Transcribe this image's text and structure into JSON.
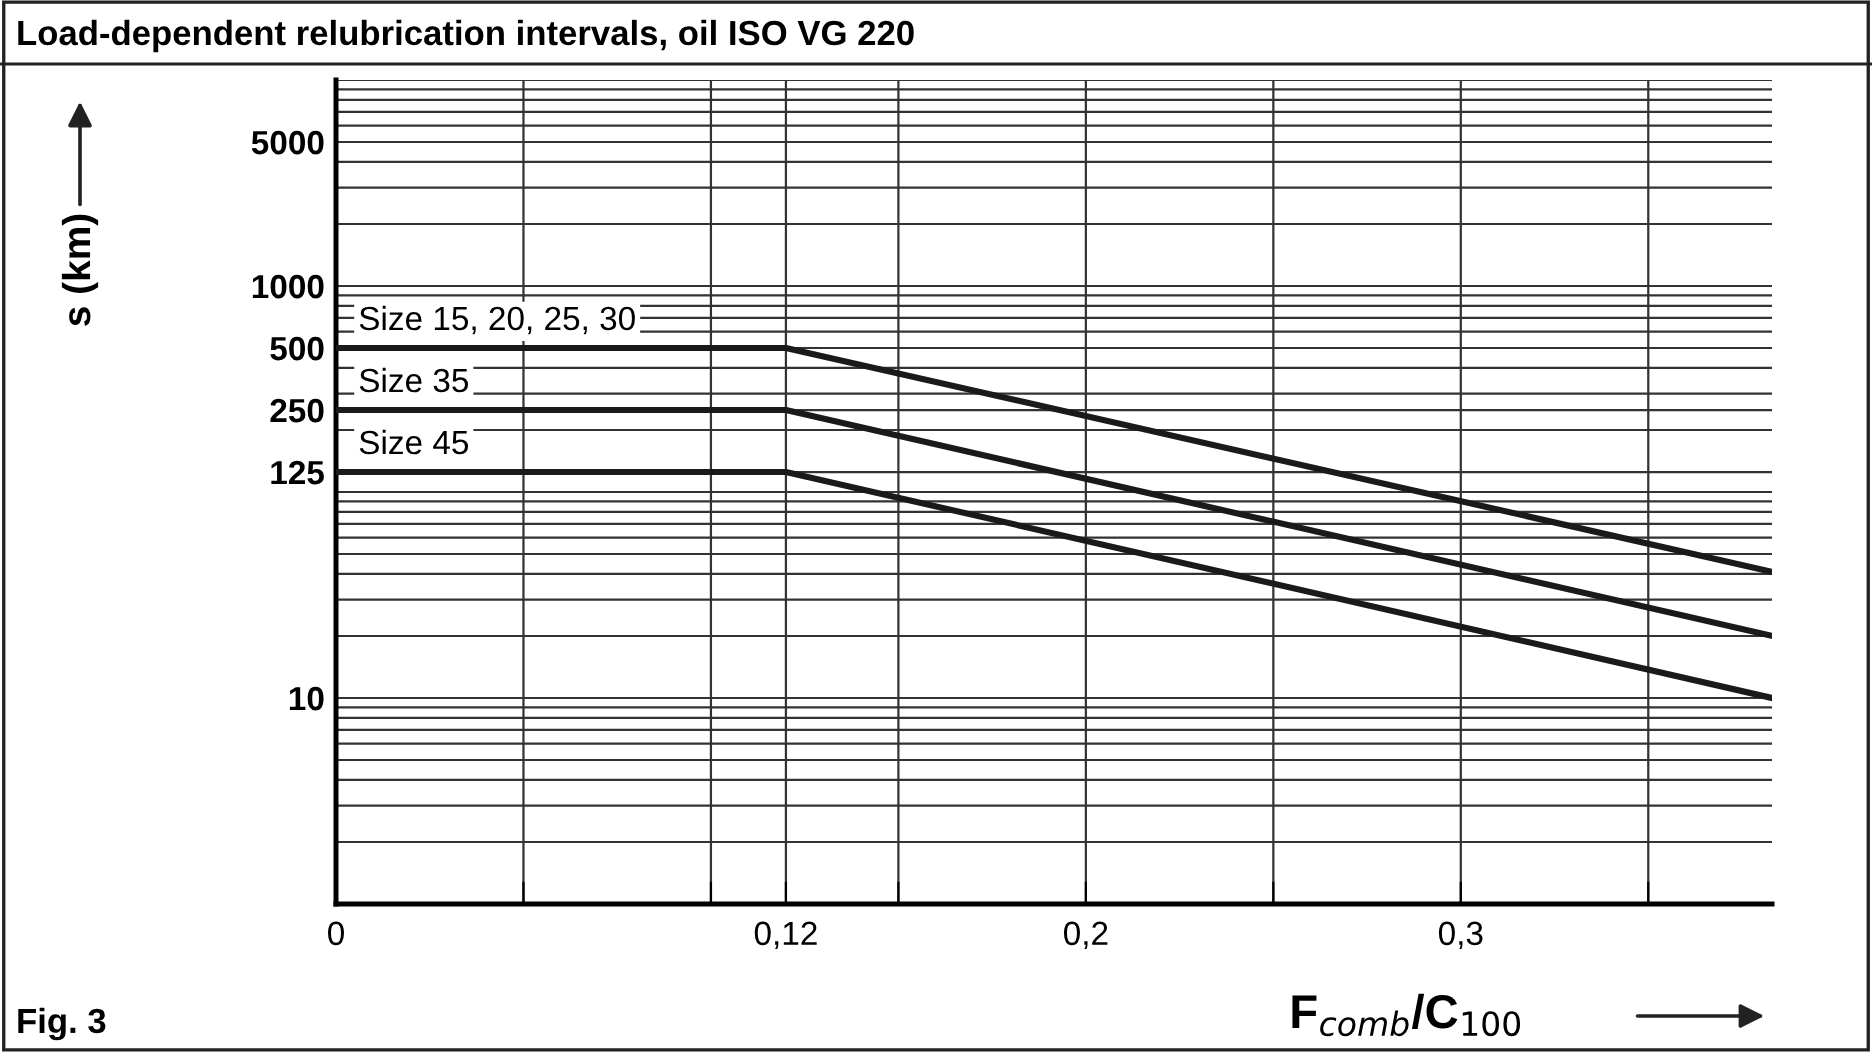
{
  "chart_data": {
    "type": "line",
    "title": "Load-dependent relubrication intervals, oil ISO VG 220",
    "ylabel": "s (km)",
    "xlabel": "F$_{comb}$/C$_{100}$",
    "annotations": [
      "Fig. 3"
    ],
    "x": [
      0,
      0.12,
      0.383
    ],
    "series": [
      {
        "name": "Size 15, 20, 25, 30",
        "color": "#1a1a1a",
        "values": [
          500,
          500,
          41
        ]
      },
      {
        "name": "Size 35",
        "color": "#1a1a1a",
        "values": [
          250,
          250,
          20
        ]
      },
      {
        "name": "Size 45",
        "color": "#1a1a1a",
        "values": [
          125,
          125,
          10
        ]
      }
    ],
    "log": "y",
    "xlim": [
      0,
      0.383
    ],
    "ylim": [
      1,
      10000
    ],
    "xticks": [
      0,
      {
        "value": 0.05,
        "label": null
      },
      {
        "value": 0.1,
        "label": null
      },
      {
        "value": 0.12,
        "label": "0,12"
      },
      {
        "value": 0.15,
        "label": null
      },
      {
        "value": 0.2,
        "label": "0,2"
      },
      {
        "value": 0.25,
        "label": null
      },
      {
        "value": 0.3,
        "label": "0,3"
      },
      {
        "value": 0.35,
        "label": null
      }
    ],
    "yticks": [
      10,
      125,
      250,
      500,
      1000,
      5000
    ],
    "grid": true,
    "legend": false,
    "marker": "none",
    "line_style": "solid"
  }
}
